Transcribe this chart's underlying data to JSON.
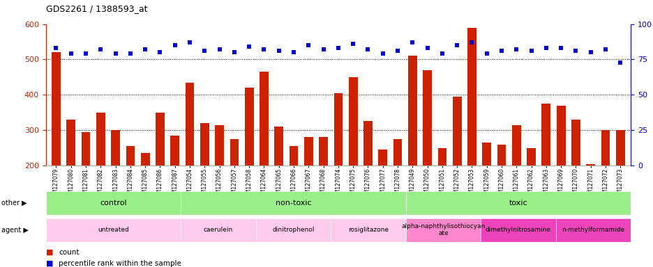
{
  "title": "GDS2261 / 1388593_at",
  "samples": [
    "GSM127079",
    "GSM127080",
    "GSM127081",
    "GSM127082",
    "GSM127083",
    "GSM127084",
    "GSM127085",
    "GSM127086",
    "GSM127087",
    "GSM127054",
    "GSM127055",
    "GSM127056",
    "GSM127057",
    "GSM127058",
    "GSM127064",
    "GSM127065",
    "GSM127066",
    "GSM127067",
    "GSM127068",
    "GSM127074",
    "GSM127075",
    "GSM127076",
    "GSM127077",
    "GSM127078",
    "GSM127049",
    "GSM127050",
    "GSM127051",
    "GSM127052",
    "GSM127053",
    "GSM127059",
    "GSM127060",
    "GSM127061",
    "GSM127062",
    "GSM127063",
    "GSM127069",
    "GSM127070",
    "GSM127071",
    "GSM127072",
    "GSM127073"
  ],
  "counts": [
    520,
    330,
    295,
    350,
    300,
    255,
    235,
    350,
    285,
    435,
    320,
    315,
    275,
    420,
    465,
    310,
    255,
    280,
    280,
    405,
    450,
    325,
    245,
    275,
    510,
    470,
    250,
    395,
    590,
    265,
    260,
    315,
    250,
    375,
    370,
    330,
    205,
    300,
    300
  ],
  "percentiles": [
    83,
    79,
    79,
    82,
    79,
    79,
    82,
    80,
    85,
    87,
    81,
    82,
    80,
    84,
    82,
    81,
    80,
    85,
    82,
    83,
    86,
    82,
    79,
    81,
    87,
    83,
    79,
    85,
    87,
    79,
    81,
    82,
    81,
    83,
    83,
    81,
    80,
    82,
    73
  ],
  "bar_color": "#cc2200",
  "dot_color": "#0000cc",
  "ylim_left": [
    200,
    600
  ],
  "ylim_right": [
    0,
    100
  ],
  "yticks_left": [
    200,
    300,
    400,
    500,
    600
  ],
  "yticks_right": [
    0,
    25,
    50,
    75,
    100
  ],
  "grid_lines": [
    300,
    400,
    500
  ],
  "other_groups": [
    {
      "label": "control",
      "start": 0,
      "end": 9,
      "color": "#99ee88"
    },
    {
      "label": "non-toxic",
      "start": 9,
      "end": 24,
      "color": "#99ee88"
    },
    {
      "label": "toxic",
      "start": 24,
      "end": 39,
      "color": "#99ee88"
    }
  ],
  "agent_groups": [
    {
      "label": "untreated",
      "start": 0,
      "end": 9,
      "color": "#ffccee"
    },
    {
      "label": "caerulein",
      "start": 9,
      "end": 14,
      "color": "#ffccee"
    },
    {
      "label": "dinitrophenol",
      "start": 14,
      "end": 19,
      "color": "#ffccee"
    },
    {
      "label": "rosiglitazone",
      "start": 19,
      "end": 24,
      "color": "#ffccee"
    },
    {
      "label": "alpha-naphthylisothiocyan\nate",
      "start": 24,
      "end": 29,
      "color": "#ff88cc"
    },
    {
      "label": "dimethylnitrosamine",
      "start": 29,
      "end": 34,
      "color": "#ee44bb"
    },
    {
      "label": "n-methylformamide",
      "start": 34,
      "end": 39,
      "color": "#ee44bb"
    }
  ],
  "other_label": "other",
  "agent_label": "agent",
  "legend_count_color": "#cc2200",
  "legend_dot_color": "#0000cc",
  "background_color": "#ffffff"
}
